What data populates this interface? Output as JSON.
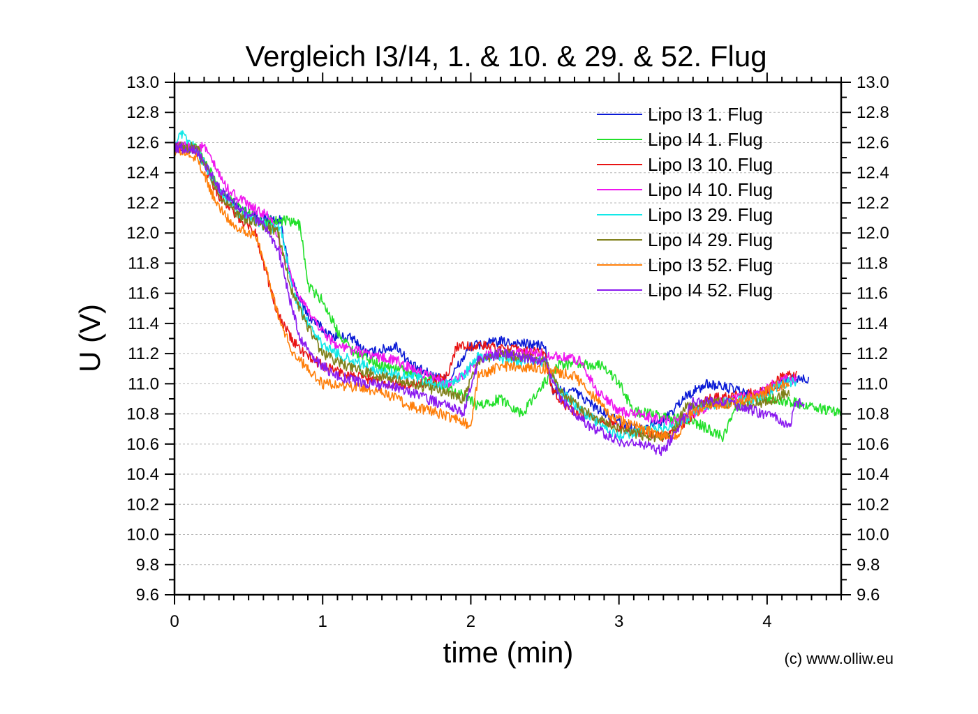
{
  "chart_data": {
    "type": "line",
    "title": "Vergleich I3/I4, 1. & 10. & 29. & 52. Flug",
    "xlabel": "time (min)",
    "ylabel": "U (V)",
    "xlim": [
      0,
      4.5
    ],
    "ylim": [
      9.6,
      13.0
    ],
    "x_ticks": [
      "0",
      "1",
      "2",
      "3",
      "4"
    ],
    "y_ticks": [
      "9.6",
      "9.8",
      "10.0",
      "10.2",
      "10.4",
      "10.6",
      "10.8",
      "11.0",
      "11.2",
      "11.4",
      "11.6",
      "11.8",
      "12.0",
      "12.2",
      "12.4",
      "12.6",
      "12.8",
      "13.0"
    ],
    "grid": true,
    "legend_position": "top-right",
    "copyright": "(c) www.olliw.eu",
    "series": [
      {
        "name": "Lipo I3 1. Flug",
        "color": "#0a1ad6",
        "points": [
          [
            0,
            12.57
          ],
          [
            0.15,
            12.55
          ],
          [
            0.3,
            12.28
          ],
          [
            0.45,
            12.15
          ],
          [
            0.6,
            12.1
          ],
          [
            0.72,
            12.08
          ],
          [
            0.78,
            11.7
          ],
          [
            0.9,
            11.45
          ],
          [
            1.05,
            11.32
          ],
          [
            1.2,
            11.3
          ],
          [
            1.3,
            11.2
          ],
          [
            1.5,
            11.25
          ],
          [
            1.6,
            11.12
          ],
          [
            1.75,
            11.05
          ],
          [
            1.85,
            11.02
          ],
          [
            2.0,
            11.25
          ],
          [
            2.2,
            11.28
          ],
          [
            2.5,
            11.25
          ],
          [
            2.55,
            10.95
          ],
          [
            2.7,
            10.95
          ],
          [
            2.9,
            10.8
          ],
          [
            3.1,
            10.7
          ],
          [
            3.3,
            10.75
          ],
          [
            3.45,
            10.92
          ],
          [
            3.6,
            11.0
          ],
          [
            3.75,
            10.97
          ],
          [
            3.9,
            10.92
          ],
          [
            4.0,
            10.95
          ],
          [
            4.15,
            11.03
          ],
          [
            4.28,
            11.03
          ]
        ]
      },
      {
        "name": "Lipo I4 1. Flug",
        "color": "#22e02a",
        "points": [
          [
            0,
            12.57
          ],
          [
            0.15,
            12.57
          ],
          [
            0.3,
            12.3
          ],
          [
            0.45,
            12.15
          ],
          [
            0.6,
            12.08
          ],
          [
            0.75,
            12.08
          ],
          [
            0.85,
            12.05
          ],
          [
            0.9,
            11.65
          ],
          [
            1.0,
            11.55
          ],
          [
            1.1,
            11.35
          ],
          [
            1.2,
            11.22
          ],
          [
            1.4,
            11.12
          ],
          [
            1.6,
            11.08
          ],
          [
            1.8,
            11.0
          ],
          [
            1.95,
            10.92
          ],
          [
            2.05,
            10.85
          ],
          [
            2.2,
            10.9
          ],
          [
            2.35,
            10.8
          ],
          [
            2.45,
            10.95
          ],
          [
            2.6,
            11.13
          ],
          [
            2.9,
            11.12
          ],
          [
            3.0,
            11.0
          ],
          [
            3.1,
            10.82
          ],
          [
            3.3,
            10.78
          ],
          [
            3.5,
            10.75
          ],
          [
            3.7,
            10.65
          ],
          [
            3.8,
            10.85
          ],
          [
            3.9,
            10.92
          ],
          [
            4.05,
            10.9
          ],
          [
            4.3,
            10.85
          ],
          [
            4.5,
            10.8
          ]
        ]
      },
      {
        "name": "Lipo I3 10. Flug",
        "color": "#e81414",
        "points": [
          [
            0,
            12.57
          ],
          [
            0.15,
            12.55
          ],
          [
            0.3,
            12.25
          ],
          [
            0.45,
            12.08
          ],
          [
            0.55,
            12.0
          ],
          [
            0.6,
            11.8
          ],
          [
            0.7,
            11.45
          ],
          [
            0.8,
            11.28
          ],
          [
            0.9,
            11.18
          ],
          [
            1.0,
            11.12
          ],
          [
            1.2,
            11.05
          ],
          [
            1.5,
            11.0
          ],
          [
            1.7,
            11.0
          ],
          [
            1.85,
            11.05
          ],
          [
            1.9,
            11.25
          ],
          [
            2.1,
            11.25
          ],
          [
            2.5,
            11.2
          ],
          [
            2.55,
            10.95
          ],
          [
            2.7,
            10.8
          ],
          [
            2.9,
            10.75
          ],
          [
            3.1,
            10.68
          ],
          [
            3.3,
            10.65
          ],
          [
            3.45,
            10.75
          ],
          [
            3.6,
            10.9
          ],
          [
            3.8,
            10.92
          ],
          [
            4.0,
            10.95
          ],
          [
            4.1,
            11.05
          ],
          [
            4.2,
            11.05
          ]
        ]
      },
      {
        "name": "Lipo I4 10. Flug",
        "color": "#ef16ef",
        "points": [
          [
            0,
            12.57
          ],
          [
            0.2,
            12.57
          ],
          [
            0.35,
            12.3
          ],
          [
            0.5,
            12.18
          ],
          [
            0.65,
            12.1
          ],
          [
            0.75,
            11.8
          ],
          [
            0.85,
            11.55
          ],
          [
            1.0,
            11.35
          ],
          [
            1.1,
            11.25
          ],
          [
            1.3,
            11.2
          ],
          [
            1.5,
            11.15
          ],
          [
            1.7,
            11.05
          ],
          [
            1.85,
            11.0
          ],
          [
            1.95,
            11.05
          ],
          [
            2.1,
            11.2
          ],
          [
            2.4,
            11.2
          ],
          [
            2.6,
            11.18
          ],
          [
            2.75,
            11.15
          ],
          [
            2.85,
            10.95
          ],
          [
            3.0,
            10.82
          ],
          [
            3.2,
            10.78
          ],
          [
            3.35,
            10.75
          ],
          [
            3.5,
            10.8
          ],
          [
            3.65,
            10.88
          ],
          [
            3.8,
            10.9
          ],
          [
            3.95,
            10.95
          ],
          [
            4.1,
            11.03
          ],
          [
            4.2,
            11.03
          ]
        ]
      },
      {
        "name": "Lipo I3 29. Flug",
        "color": "#12e8e8",
        "points": [
          [
            0,
            12.6
          ],
          [
            0.05,
            12.65
          ],
          [
            0.15,
            12.55
          ],
          [
            0.3,
            12.28
          ],
          [
            0.45,
            12.12
          ],
          [
            0.6,
            12.05
          ],
          [
            0.72,
            12.02
          ],
          [
            0.8,
            11.6
          ],
          [
            0.9,
            11.4
          ],
          [
            1.0,
            11.25
          ],
          [
            1.2,
            11.15
          ],
          [
            1.4,
            11.08
          ],
          [
            1.6,
            11.05
          ],
          [
            1.8,
            10.98
          ],
          [
            1.95,
            11.05
          ],
          [
            2.05,
            11.18
          ],
          [
            2.3,
            11.15
          ],
          [
            2.5,
            11.15
          ],
          [
            2.6,
            10.95
          ],
          [
            2.8,
            10.78
          ],
          [
            3.0,
            10.65
          ],
          [
            3.2,
            10.7
          ],
          [
            3.4,
            10.72
          ],
          [
            3.55,
            10.85
          ],
          [
            3.75,
            10.88
          ],
          [
            3.95,
            10.9
          ],
          [
            4.1,
            11.0
          ],
          [
            4.2,
            11.02
          ]
        ]
      },
      {
        "name": "Lipo I4 29. Flug",
        "color": "#80801a",
        "points": [
          [
            0,
            12.57
          ],
          [
            0.15,
            12.57
          ],
          [
            0.3,
            12.25
          ],
          [
            0.45,
            12.1
          ],
          [
            0.6,
            12.05
          ],
          [
            0.7,
            12.0
          ],
          [
            0.78,
            11.65
          ],
          [
            0.9,
            11.38
          ],
          [
            1.0,
            11.2
          ],
          [
            1.2,
            11.1
          ],
          [
            1.4,
            11.05
          ],
          [
            1.6,
            11.0
          ],
          [
            1.8,
            10.95
          ],
          [
            1.95,
            10.9
          ],
          [
            2.05,
            11.15
          ],
          [
            2.2,
            11.2
          ],
          [
            2.5,
            11.15
          ],
          [
            2.6,
            10.95
          ],
          [
            2.8,
            10.8
          ],
          [
            3.0,
            10.7
          ],
          [
            3.2,
            10.65
          ],
          [
            3.35,
            10.65
          ],
          [
            3.45,
            10.85
          ],
          [
            3.65,
            10.88
          ],
          [
            3.85,
            10.85
          ],
          [
            4.05,
            10.9
          ],
          [
            4.15,
            10.95
          ]
        ]
      },
      {
        "name": "Lipo I3 52. Flug",
        "color": "#ff7f0a",
        "points": [
          [
            0,
            12.55
          ],
          [
            0.15,
            12.5
          ],
          [
            0.28,
            12.2
          ],
          [
            0.4,
            12.05
          ],
          [
            0.55,
            11.98
          ],
          [
            0.62,
            11.75
          ],
          [
            0.7,
            11.45
          ],
          [
            0.8,
            11.2
          ],
          [
            0.9,
            11.1
          ],
          [
            1.0,
            11.0
          ],
          [
            1.2,
            10.98
          ],
          [
            1.4,
            10.95
          ],
          [
            1.6,
            10.85
          ],
          [
            1.8,
            10.8
          ],
          [
            1.95,
            10.75
          ],
          [
            2.0,
            10.72
          ],
          [
            2.05,
            11.05
          ],
          [
            2.2,
            11.12
          ],
          [
            2.5,
            11.1
          ],
          [
            2.7,
            11.05
          ],
          [
            2.8,
            10.95
          ],
          [
            2.95,
            10.78
          ],
          [
            3.1,
            10.72
          ],
          [
            3.3,
            10.65
          ],
          [
            3.4,
            10.65
          ],
          [
            3.45,
            10.78
          ],
          [
            3.6,
            10.85
          ],
          [
            3.8,
            10.88
          ],
          [
            3.95,
            10.92
          ],
          [
            4.05,
            10.98
          ],
          [
            4.15,
            11.0
          ]
        ]
      },
      {
        "name": "Lipo I4 52. Flug",
        "color": "#8a1aef",
        "points": [
          [
            0,
            12.57
          ],
          [
            0.15,
            12.55
          ],
          [
            0.3,
            12.3
          ],
          [
            0.45,
            12.15
          ],
          [
            0.6,
            12.05
          ],
          [
            0.7,
            11.9
          ],
          [
            0.78,
            11.55
          ],
          [
            0.85,
            11.3
          ],
          [
            0.95,
            11.15
          ],
          [
            1.1,
            11.05
          ],
          [
            1.3,
            11.0
          ],
          [
            1.5,
            10.98
          ],
          [
            1.7,
            10.9
          ],
          [
            1.85,
            10.85
          ],
          [
            1.95,
            10.8
          ],
          [
            2.05,
            11.15
          ],
          [
            2.2,
            11.2
          ],
          [
            2.5,
            11.15
          ],
          [
            2.6,
            10.9
          ],
          [
            2.8,
            10.72
          ],
          [
            3.0,
            10.62
          ],
          [
            3.15,
            10.6
          ],
          [
            3.3,
            10.55
          ],
          [
            3.4,
            10.7
          ],
          [
            3.5,
            10.88
          ],
          [
            3.7,
            10.88
          ],
          [
            3.9,
            10.82
          ],
          [
            4.05,
            10.78
          ],
          [
            4.15,
            10.7
          ],
          [
            4.18,
            10.85
          ],
          [
            4.25,
            10.88
          ]
        ]
      }
    ]
  }
}
